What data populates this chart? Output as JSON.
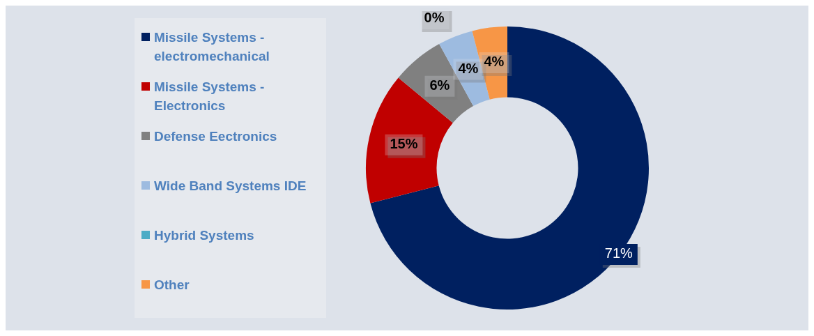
{
  "chart_data": {
    "type": "donut",
    "categories": [
      "Missile Systems - electromechanical",
      "Missile Systems - Electronics",
      "Defense Eectronics",
      "Wide Band Systems IDE",
      "Hybrid Systems",
      "Other"
    ],
    "values": [
      71,
      15,
      6,
      4,
      0,
      4
    ],
    "colors": [
      "#002060",
      "#c00000",
      "#808080",
      "#9dbbe0",
      "#4bacc6",
      "#f79646"
    ],
    "value_labels": [
      "71%",
      "15%",
      "6%",
      "4%",
      "0%",
      "4%"
    ],
    "legend": "left"
  }
}
